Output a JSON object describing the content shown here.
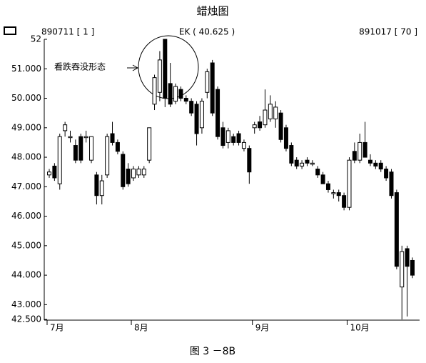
{
  "chart_data": {
    "type": "candlestick",
    "title": "蜡烛图",
    "header_left": "890711 [ 1 ]",
    "header_center": "EK ( 40.625 )",
    "header_right": "891017 [ 70 ]",
    "annotation": "看跌吞没形态",
    "caption": "图 3 －8B",
    "color": "#000000",
    "categories": [
      "7月",
      null,
      null,
      null,
      null,
      null,
      null,
      null,
      null,
      null,
      null,
      null,
      null,
      null,
      null,
      null,
      "8月",
      null,
      null,
      null,
      null,
      null,
      null,
      null,
      null,
      null,
      null,
      null,
      null,
      null,
      null,
      null,
      null,
      null,
      null,
      null,
      null,
      null,
      null,
      "9月",
      null,
      null,
      null,
      null,
      null,
      null,
      null,
      null,
      null,
      null,
      null,
      null,
      null,
      null,
      null,
      null,
      null,
      "10月",
      null,
      null,
      null,
      null,
      null,
      null,
      null,
      null,
      null,
      null,
      null,
      null
    ],
    "open": [
      47.4,
      47.7,
      47.1,
      48.9,
      48.7,
      48.4,
      48.7,
      48.7,
      47.9,
      47.4,
      46.7,
      47.4,
      48.8,
      48.5,
      48.1,
      47.6,
      47.3,
      47.4,
      47.4,
      47.9,
      49.8,
      50.2,
      52.0,
      50.5,
      49.9,
      50.3,
      50.0,
      49.9,
      49.8,
      49.0,
      50.2,
      51.2,
      50.3,
      49.0,
      48.5,
      48.7,
      48.8,
      48.3,
      48.3,
      49.0,
      49.2,
      49.1,
      49.3,
      49.3,
      49.5,
      49.0,
      48.4,
      47.9,
      47.7,
      47.9,
      47.8,
      47.6,
      47.4,
      47.1,
      46.8,
      46.8,
      46.7,
      46.3,
      48.2,
      47.9,
      48.5,
      47.9,
      47.8,
      47.8,
      47.6,
      47.5,
      46.8,
      43.6,
      44.9,
      44.5
    ],
    "high": [
      47.6,
      47.8,
      48.8,
      49.2,
      48.9,
      48.6,
      48.8,
      48.9,
      48.7,
      47.5,
      47.4,
      48.8,
      49.2,
      48.6,
      48.2,
      47.8,
      47.7,
      47.7,
      47.7,
      49.0,
      50.8,
      51.6,
      52.0,
      51.2,
      50.5,
      50.4,
      50.1,
      50.0,
      49.9,
      50.0,
      51.0,
      51.3,
      50.4,
      49.2,
      49.0,
      48.8,
      48.9,
      48.6,
      48.4,
      49.2,
      49.4,
      50.3,
      50.1,
      49.9,
      49.6,
      49.1,
      48.5,
      48.0,
      47.9,
      48.0,
      47.9,
      47.7,
      47.5,
      47.2,
      46.9,
      46.9,
      46.8,
      48.0,
      48.5,
      48.8,
      49.2,
      48.1,
      47.9,
      47.9,
      47.7,
      47.6,
      46.9,
      45.0,
      45.0,
      44.6
    ],
    "low": [
      47.3,
      47.2,
      46.9,
      48.7,
      48.5,
      47.8,
      47.8,
      48.5,
      47.8,
      46.4,
      46.4,
      47.3,
      48.4,
      48.1,
      46.9,
      47.0,
      47.2,
      47.3,
      47.3,
      47.8,
      49.6,
      49.9,
      49.7,
      49.7,
      49.8,
      49.9,
      49.8,
      49.4,
      48.4,
      48.8,
      50.0,
      49.4,
      48.6,
      48.3,
      48.3,
      48.4,
      48.4,
      48.2,
      47.1,
      48.8,
      48.9,
      49.0,
      49.2,
      49.0,
      48.5,
      48.2,
      47.7,
      47.6,
      47.6,
      47.7,
      47.7,
      47.3,
      47.1,
      46.8,
      46.6,
      46.5,
      46.2,
      46.2,
      47.8,
      47.8,
      48.0,
      47.7,
      47.6,
      47.5,
      47.2,
      46.6,
      44.2,
      42.5,
      42.6,
      43.9
    ],
    "close": [
      47.5,
      47.3,
      48.7,
      49.1,
      48.7,
      47.9,
      47.9,
      48.7,
      48.7,
      46.7,
      47.2,
      48.7,
      48.5,
      48.2,
      47.0,
      47.1,
      47.6,
      47.6,
      47.6,
      49.0,
      50.7,
      51.3,
      50.0,
      49.8,
      50.4,
      50.0,
      49.9,
      49.5,
      48.8,
      49.9,
      50.9,
      49.5,
      48.7,
      48.4,
      48.9,
      48.5,
      48.5,
      48.5,
      47.5,
      49.1,
      49.0,
      49.6,
      49.8,
      49.7,
      48.6,
      48.3,
      47.8,
      47.7,
      47.8,
      47.8,
      47.8,
      47.4,
      47.1,
      46.9,
      46.8,
      46.7,
      46.3,
      47.9,
      47.9,
      48.5,
      48.0,
      47.8,
      47.7,
      47.6,
      47.3,
      46.7,
      44.3,
      44.8,
      44.3,
      44.0
    ],
    "ylim": [
      42.5,
      52
    ],
    "yticks": [
      {
        "value": 42.5,
        "label": "42.500"
      },
      {
        "value": 43,
        "label": "43.000"
      },
      {
        "value": 44,
        "label": "44.000"
      },
      {
        "value": 45,
        "label": "45.000"
      },
      {
        "value": 46,
        "label": "46.000"
      },
      {
        "value": 47,
        "label": "47.000"
      },
      {
        "value": 48,
        "label": "48.000"
      },
      {
        "value": 49,
        "label": "49.000"
      },
      {
        "value": 50,
        "label": "50.000"
      },
      {
        "value": 51,
        "label": "51.000"
      },
      52
    ]
  }
}
